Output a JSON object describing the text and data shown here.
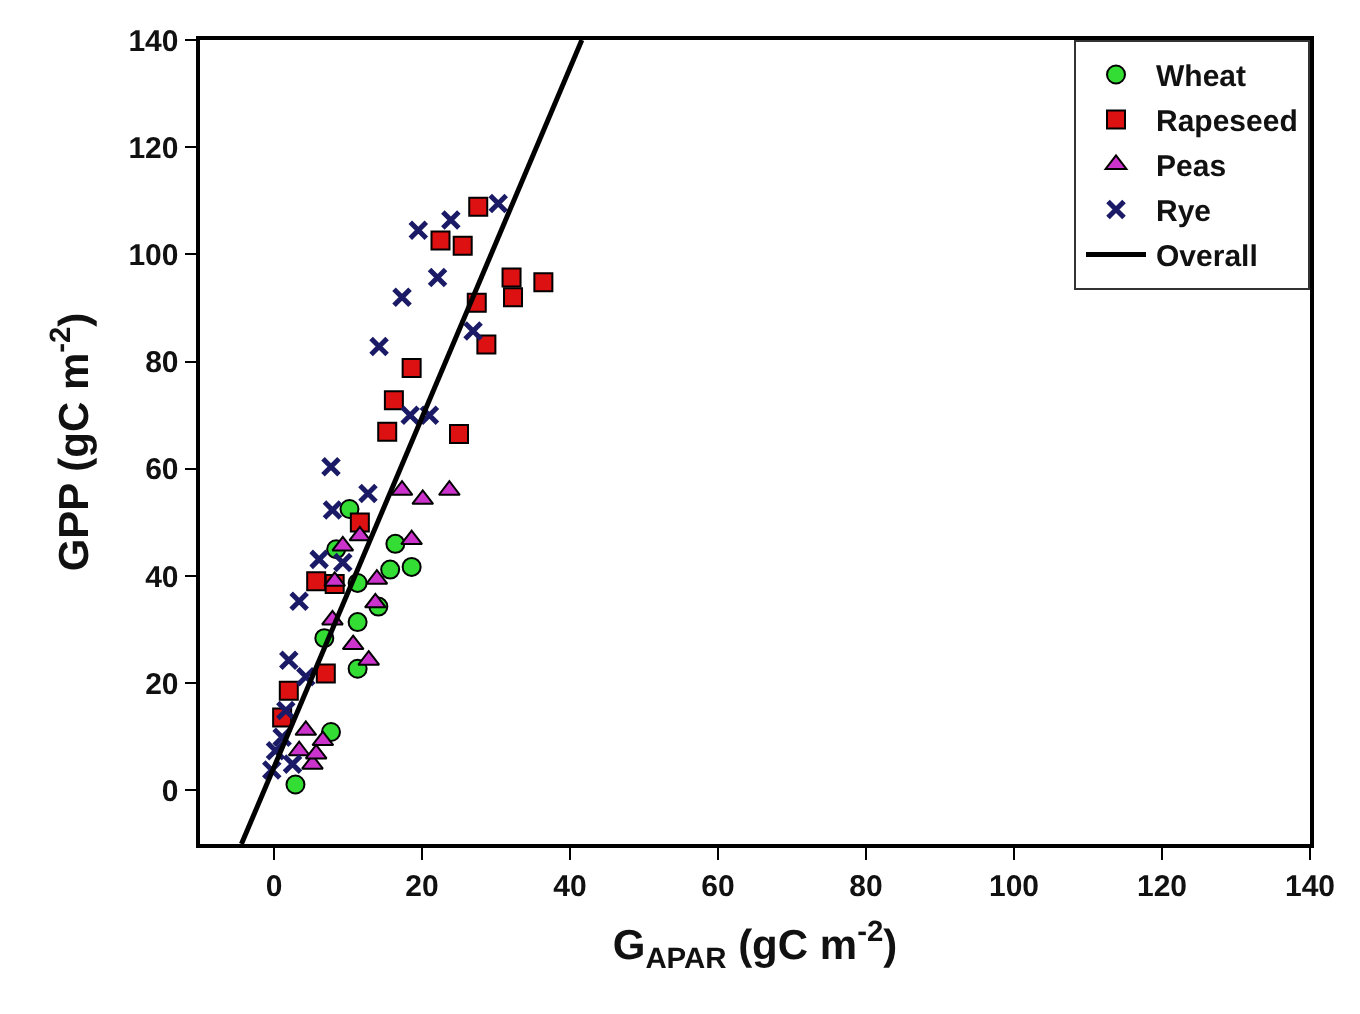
{
  "chart_data": {
    "type": "scatter",
    "xlabel": "G$_{APAR}$ (gC m$^{-2}$)",
    "ylabel": "GPP (gC m$^{-2}$)",
    "xlim": [
      -10,
      140
    ],
    "ylim": [
      -10,
      140
    ],
    "xticks": [
      0,
      20,
      40,
      60,
      80,
      100,
      120,
      140
    ],
    "yticks": [
      0,
      20,
      40,
      60,
      80,
      100,
      120,
      140
    ],
    "grid": false,
    "legend": "top right",
    "series": [
      {
        "name": "Wheat",
        "color": "#33dd33",
        "marker": "circle",
        "x": [
          10.2,
          8.4,
          11.3,
          16.4,
          15.7,
          18.6,
          14.1,
          11.3,
          6.8,
          11.3,
          7.7,
          2.9
        ],
        "values": [
          52.5,
          45,
          38.7,
          46,
          41.2,
          41.7,
          34.3,
          31.4,
          28.4,
          22.7,
          10.9,
          1.1
        ]
      },
      {
        "name": "Rapeseed",
        "color": "#dd1111",
        "marker": "square",
        "x": [
          27.6,
          22.5,
          25.5,
          32.1,
          36.4,
          32.3,
          27.4,
          28.7,
          18.6,
          16.2,
          15.3,
          25,
          11.6,
          5.7,
          8.2,
          7,
          2,
          1.1
        ],
        "values": [
          108.9,
          102.6,
          101.6,
          95.7,
          94.8,
          92,
          91,
          83.2,
          78.8,
          72.8,
          66.9,
          66.5,
          50,
          39,
          38.5,
          21.8,
          18.6,
          13.6
        ]
      },
      {
        "name": "Peas",
        "color": "#cc33cc",
        "marker": "triangle",
        "x": [
          17.3,
          20.1,
          23.7,
          18.6,
          9.3,
          11.6,
          8.2,
          13.9,
          13.7,
          7.9,
          10.7,
          12.8,
          4.3,
          6.6,
          5.2,
          3.4,
          5.7
        ],
        "values": [
          56,
          54.3,
          56,
          46.8,
          45.6,
          47.5,
          39,
          39.4,
          35,
          31.8,
          27.2,
          24.3,
          11.2,
          9.3,
          4.9,
          7.4,
          6.8
        ]
      },
      {
        "name": "Rye",
        "color": "#1a1a66",
        "marker": "cross",
        "x": [
          30.3,
          23.9,
          19.5,
          22.1,
          17.3,
          26.9,
          14.2,
          18.4,
          21,
          7.7,
          12.7,
          7.9,
          6.1,
          9.3,
          3.4,
          2,
          4.3,
          1.6,
          0.2,
          2.5,
          1.1,
          -0.3
        ],
        "values": [
          109.5,
          106.4,
          104.5,
          95.7,
          92,
          85.7,
          82.8,
          70,
          70,
          60.4,
          55.4,
          52.3,
          43.1,
          42.5,
          35.3,
          24.3,
          21.2,
          14.9,
          7.4,
          4.9,
          9.9,
          3.8
        ]
      },
      {
        "name": "Overall",
        "type": "line",
        "color": "#000000",
        "line_style": "solid",
        "marker": "none",
        "x": [
          -4.4,
          41.6
        ],
        "values": [
          -10,
          140
        ]
      }
    ]
  }
}
